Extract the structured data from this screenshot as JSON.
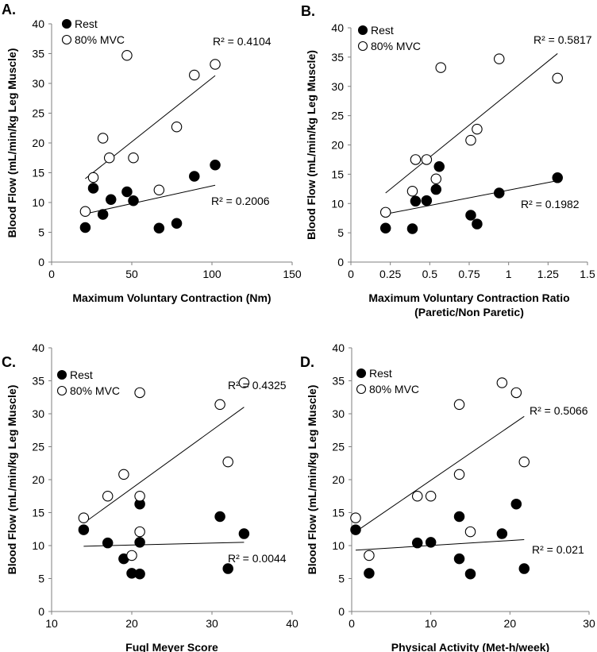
{
  "chart_data": [
    {
      "type": "scatter",
      "panel_label": "A.",
      "xlabel": "Maximum Voluntary Contraction (Nm)",
      "xlabel2": "",
      "ylabel": "Blood Flow (mL/min/kg Leg Muscle)",
      "xlim": [
        0,
        150
      ],
      "ylim": [
        0,
        40
      ],
      "xticks": [
        0,
        50,
        100,
        150
      ],
      "xtick_labels": [
        "0",
        "50",
        "100",
        "150"
      ],
      "yticks": [
        0,
        5,
        10,
        15,
        20,
        25,
        30,
        35,
        40
      ],
      "legend": [
        "Rest",
        "80% MVC"
      ],
      "legend_position": "top-left",
      "series": [
        {
          "name": "Rest",
          "marker": "filled-circle",
          "x": [
            21,
            26,
            32,
            37,
            47,
            51,
            67,
            78,
            89,
            102
          ],
          "y": [
            5.8,
            12.4,
            8.0,
            10.5,
            11.8,
            10.3,
            5.7,
            6.5,
            14.4,
            16.3
          ],
          "trend": {
            "x": [
              21,
              102
            ],
            "y": [
              8.1,
              12.9
            ]
          },
          "r2": "R² = 0.2006"
        },
        {
          "name": "80% MVC",
          "marker": "open-circle",
          "x": [
            21,
            26,
            32,
            36,
            47,
            51,
            67,
            78,
            89,
            102
          ],
          "y": [
            8.5,
            14.2,
            20.8,
            17.5,
            34.7,
            17.5,
            12.1,
            22.7,
            31.4,
            33.2
          ],
          "trend": {
            "x": [
              21,
              102
            ],
            "y": [
              14.0,
              31.3
            ]
          },
          "r2": "R² = 0.4104"
        }
      ]
    },
    {
      "type": "scatter",
      "panel_label": "B.",
      "xlabel": "Maximum Voluntary Contraction Ratio",
      "xlabel2": "(Paretic/Non Paretic)",
      "ylabel": "Blood Flow (mL/min/kg Leg Muscle)",
      "xlim": [
        0,
        1.5
      ],
      "ylim": [
        0,
        40
      ],
      "xticks": [
        0,
        0.25,
        0.5,
        0.75,
        1,
        1.25,
        1.5
      ],
      "xtick_labels": [
        "0",
        "0.25",
        "0.5",
        "0.75",
        "1",
        "1.25",
        "1.5"
      ],
      "yticks": [
        0,
        5,
        10,
        15,
        20,
        25,
        30,
        35,
        40
      ],
      "legend": [
        "Rest",
        "80% MVC"
      ],
      "legend_position": "top-left",
      "series": [
        {
          "name": "Rest",
          "marker": "filled-circle",
          "x": [
            0.22,
            0.39,
            0.41,
            0.48,
            0.54,
            0.56,
            0.76,
            0.8,
            0.94,
            1.31
          ],
          "y": [
            5.8,
            5.7,
            10.4,
            10.5,
            12.4,
            16.3,
            8.0,
            6.5,
            11.8,
            14.4
          ],
          "trend": {
            "x": [
              0.22,
              1.31
            ],
            "y": [
              8.2,
              13.9
            ]
          },
          "r2": "R² = 0.1982"
        },
        {
          "name": "80% MVC",
          "marker": "open-circle",
          "x": [
            0.22,
            0.39,
            0.41,
            0.48,
            0.54,
            0.57,
            0.76,
            0.8,
            0.94,
            1.31
          ],
          "y": [
            8.5,
            12.1,
            17.5,
            17.5,
            14.2,
            33.2,
            20.8,
            22.7,
            34.7,
            31.4
          ],
          "trend": {
            "x": [
              0.22,
              1.31
            ],
            "y": [
              11.8,
              35.6
            ]
          },
          "r2": "R² = 0.5817"
        }
      ]
    },
    {
      "type": "scatter",
      "panel_label": "C.",
      "xlabel": "Fugl Meyer Score",
      "xlabel2": "",
      "ylabel": "Blood Flow (mL/min/kg Leg Muscle)",
      "xlim": [
        10,
        40
      ],
      "ylim": [
        0,
        40
      ],
      "xticks": [
        10,
        20,
        30,
        40
      ],
      "xtick_labels": [
        "10",
        "20",
        "30",
        "40"
      ],
      "yticks": [
        0,
        5,
        10,
        15,
        20,
        25,
        30,
        35,
        40
      ],
      "legend": [
        "Rest",
        "80% MVC"
      ],
      "legend_position": "top-left",
      "series": [
        {
          "name": "Rest",
          "marker": "filled-circle",
          "x": [
            14,
            17,
            19,
            20,
            21,
            21,
            21,
            31,
            32,
            34
          ],
          "y": [
            12.4,
            10.4,
            8.0,
            5.8,
            5.7,
            16.3,
            10.5,
            14.4,
            6.5,
            11.8
          ],
          "trend": {
            "x": [
              14,
              34
            ],
            "y": [
              9.9,
              10.5
            ]
          },
          "r2": "R² = 0.0044"
        },
        {
          "name": "80% MVC",
          "marker": "open-circle",
          "x": [
            14,
            17,
            19,
            20,
            21,
            21,
            21,
            31,
            32,
            34
          ],
          "y": [
            14.2,
            17.5,
            20.8,
            8.5,
            33.2,
            17.5,
            12.1,
            31.4,
            22.7,
            34.7
          ],
          "trend": {
            "x": [
              14,
              34
            ],
            "y": [
              13.4,
              31.0
            ]
          },
          "r2": "R² = 0.4325"
        }
      ]
    },
    {
      "type": "scatter",
      "panel_label": "D.",
      "xlabel": "Physical Activity (Met-h/week)",
      "xlabel2": "",
      "ylabel": "Blood Flow (mL/min/kg Leg Muscle)",
      "xlim": [
        0,
        30
      ],
      "ylim": [
        0,
        40
      ],
      "xticks": [
        0,
        10,
        20,
        30
      ],
      "xtick_labels": [
        "0",
        "10",
        "20",
        "30"
      ],
      "yticks": [
        0,
        5,
        10,
        15,
        20,
        25,
        30,
        35,
        40
      ],
      "legend": [
        "Rest",
        "80% MVC"
      ],
      "legend_position": "top-left",
      "series": [
        {
          "name": "Rest",
          "marker": "filled-circle",
          "x": [
            0.5,
            2.2,
            8.3,
            10.0,
            13.6,
            13.6,
            15.0,
            19.0,
            20.8,
            21.8
          ],
          "y": [
            12.4,
            5.8,
            10.4,
            10.5,
            14.4,
            8.0,
            5.7,
            11.8,
            16.3,
            6.5
          ],
          "trend": {
            "x": [
              0.5,
              21.8
            ],
            "y": [
              9.3,
              10.9
            ]
          },
          "r2": "R² = 0.021"
        },
        {
          "name": "80% MVC",
          "marker": "open-circle",
          "x": [
            0.5,
            2.2,
            8.3,
            10.0,
            13.6,
            13.6,
            15.0,
            19.0,
            20.8,
            21.8
          ],
          "y": [
            14.2,
            8.5,
            17.5,
            17.5,
            31.4,
            20.8,
            12.1,
            34.7,
            33.2,
            22.7
          ],
          "trend": {
            "x": [
              0.5,
              21.8
            ],
            "y": [
              12.1,
              29.6
            ]
          },
          "r2": "R² = 0.5066"
        }
      ]
    }
  ]
}
